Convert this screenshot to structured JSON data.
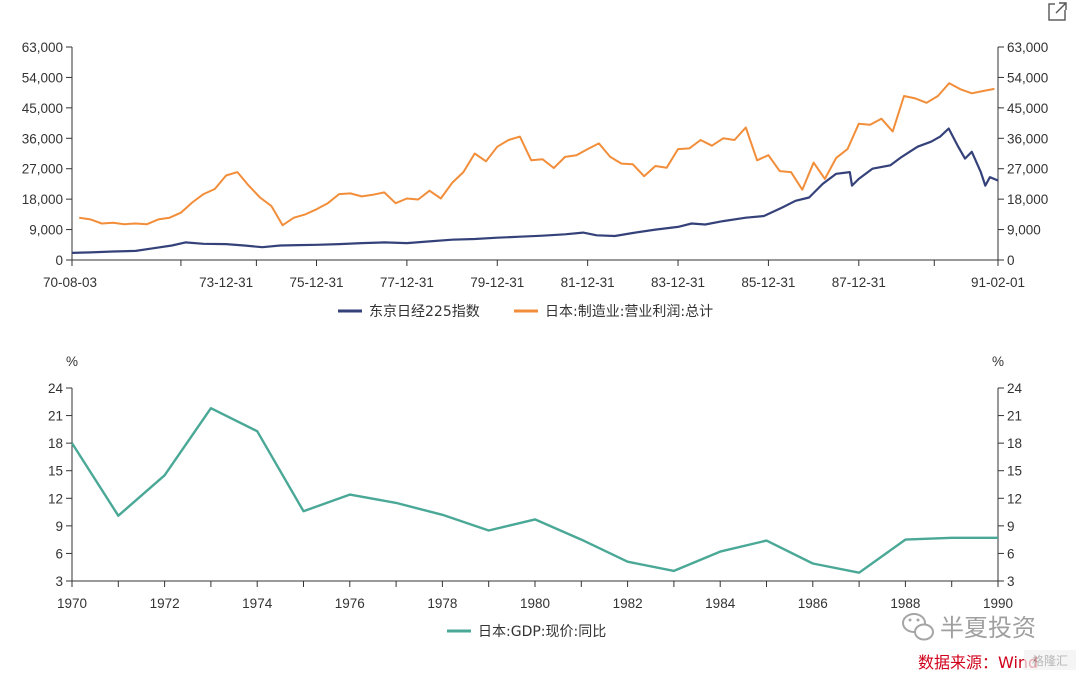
{
  "watermark": "半夏投资",
  "source_note": "数据来源：Wind",
  "corner_logo": "格隆汇",
  "chart_data": [
    {
      "type": "line",
      "x_start": "70-08-03",
      "x_end": "91-02-01",
      "x_tick_labels": [
        "70-08-03",
        "73-12-31",
        "75-12-31",
        "77-12-31",
        "79-12-31",
        "81-12-31",
        "83-12-31",
        "85-12-31",
        "87-12-31",
        "91-02-01"
      ],
      "y_left_ticks": [
        "0",
        "9,000",
        "18,000",
        "27,000",
        "36,000",
        "45,000",
        "54,000",
        "63,000"
      ],
      "y_right_ticks": [
        "0",
        "9,000",
        "18,000",
        "27,000",
        "36,000",
        "45,000",
        "54,000",
        "63,000"
      ],
      "ylim": [
        0,
        63000
      ],
      "grid": false,
      "legend_position": "bottom",
      "series": [
        {
          "name": "东京日经225指数",
          "color": "#35427a",
          "points": [
            [
              1970.59,
              2100
            ],
            [
              1971.0,
              2250
            ],
            [
              1971.5,
              2500
            ],
            [
              1972.0,
              2700
            ],
            [
              1972.4,
              3500
            ],
            [
              1972.8,
              4300
            ],
            [
              1973.1,
              5200
            ],
            [
              1973.5,
              4800
            ],
            [
              1974.0,
              4700
            ],
            [
              1974.4,
              4300
            ],
            [
              1974.8,
              3800
            ],
            [
              1975.2,
              4300
            ],
            [
              1975.6,
              4400
            ],
            [
              1976.0,
              4500
            ],
            [
              1976.5,
              4700
            ],
            [
              1977.0,
              5000
            ],
            [
              1977.5,
              5200
            ],
            [
              1978.0,
              5000
            ],
            [
              1978.5,
              5500
            ],
            [
              1979.0,
              6000
            ],
            [
              1979.5,
              6200
            ],
            [
              1980.0,
              6600
            ],
            [
              1980.5,
              6900
            ],
            [
              1981.0,
              7200
            ],
            [
              1981.5,
              7600
            ],
            [
              1981.9,
              8100
            ],
            [
              1982.2,
              7300
            ],
            [
              1982.6,
              7100
            ],
            [
              1983.0,
              8000
            ],
            [
              1983.5,
              9000
            ],
            [
              1984.0,
              9800
            ],
            [
              1984.3,
              10800
            ],
            [
              1984.6,
              10500
            ],
            [
              1985.0,
              11500
            ],
            [
              1985.5,
              12500
            ],
            [
              1985.9,
              13000
            ],
            [
              1986.3,
              15500
            ],
            [
              1986.6,
              17500
            ],
            [
              1986.9,
              18500
            ],
            [
              1987.2,
              22500
            ],
            [
              1987.5,
              25500
            ],
            [
              1987.8,
              26000
            ],
            [
              1987.85,
              22000
            ],
            [
              1988.0,
              24000
            ],
            [
              1988.3,
              27000
            ],
            [
              1988.7,
              28000
            ],
            [
              1988.95,
              30500
            ],
            [
              1989.3,
              33500
            ],
            [
              1989.6,
              35000
            ],
            [
              1989.8,
              36500
            ],
            [
              1989.99,
              38900
            ],
            [
              1990.2,
              33500
            ],
            [
              1990.35,
              30000
            ],
            [
              1990.5,
              32000
            ],
            [
              1990.7,
              26000
            ],
            [
              1990.8,
              22000
            ],
            [
              1990.9,
              24500
            ],
            [
              1991.08,
              23500
            ]
          ]
        },
        {
          "name": "日本:制造业:营业利润:总计",
          "color": "#f28e3a",
          "points": [
            [
              1970.75,
              12500
            ],
            [
              1971.0,
              12000
            ],
            [
              1971.25,
              10800
            ],
            [
              1971.5,
              11000
            ],
            [
              1971.75,
              10600
            ],
            [
              1972.0,
              10800
            ],
            [
              1972.25,
              10600
            ],
            [
              1972.5,
              12000
            ],
            [
              1972.75,
              12500
            ],
            [
              1973.0,
              14000
            ],
            [
              1973.25,
              17000
            ],
            [
              1973.5,
              19500
            ],
            [
              1973.75,
              21000
            ],
            [
              1974.0,
              25000
            ],
            [
              1974.25,
              26000
            ],
            [
              1974.5,
              22000
            ],
            [
              1974.75,
              18500
            ],
            [
              1975.0,
              16000
            ],
            [
              1975.25,
              10300
            ],
            [
              1975.5,
              12500
            ],
            [
              1975.75,
              13500
            ],
            [
              1976.0,
              15000
            ],
            [
              1976.25,
              16800
            ],
            [
              1976.5,
              19500
            ],
            [
              1976.75,
              19700
            ],
            [
              1977.0,
              18800
            ],
            [
              1977.25,
              19300
            ],
            [
              1977.5,
              20000
            ],
            [
              1977.75,
              16800
            ],
            [
              1978.0,
              18200
            ],
            [
              1978.25,
              17900
            ],
            [
              1978.5,
              20500
            ],
            [
              1978.75,
              18200
            ],
            [
              1979.0,
              22800
            ],
            [
              1979.25,
              26000
            ],
            [
              1979.5,
              31500
            ],
            [
              1979.75,
              29200
            ],
            [
              1980.0,
              33500
            ],
            [
              1980.25,
              35500
            ],
            [
              1980.5,
              36500
            ],
            [
              1980.75,
              29500
            ],
            [
              1981.0,
              29800
            ],
            [
              1981.25,
              27200
            ],
            [
              1981.5,
              30500
            ],
            [
              1981.75,
              31000
            ],
            [
              1982.0,
              32800
            ],
            [
              1982.25,
              34500
            ],
            [
              1982.5,
              30500
            ],
            [
              1982.75,
              28500
            ],
            [
              1983.0,
              28300
            ],
            [
              1983.25,
              24800
            ],
            [
              1983.5,
              27800
            ],
            [
              1983.75,
              27300
            ],
            [
              1984.0,
              32800
            ],
            [
              1984.25,
              33000
            ],
            [
              1984.5,
              35500
            ],
            [
              1984.75,
              33800
            ],
            [
              1985.0,
              36000
            ],
            [
              1985.25,
              35500
            ],
            [
              1985.5,
              39200
            ],
            [
              1985.75,
              29500
            ],
            [
              1986.0,
              31000
            ],
            [
              1986.25,
              26300
            ],
            [
              1986.5,
              26000
            ],
            [
              1986.75,
              20800
            ],
            [
              1987.0,
              28800
            ],
            [
              1987.25,
              24000
            ],
            [
              1987.5,
              30200
            ],
            [
              1987.75,
              32800
            ],
            [
              1988.0,
              40300
            ],
            [
              1988.25,
              40000
            ],
            [
              1988.5,
              41800
            ],
            [
              1988.75,
              38000
            ],
            [
              1989.0,
              48500
            ],
            [
              1989.25,
              47800
            ],
            [
              1989.5,
              46500
            ],
            [
              1989.75,
              48500
            ],
            [
              1990.0,
              52300
            ],
            [
              1990.25,
              50500
            ],
            [
              1990.5,
              49300
            ],
            [
              1990.75,
              50000
            ],
            [
              1991.0,
              50600
            ]
          ]
        }
      ]
    },
    {
      "type": "line",
      "y_unit_left": "%",
      "y_unit_right": "%",
      "categories": [
        "1970",
        "1971",
        "1972",
        "1973",
        "1974",
        "1975",
        "1976",
        "1977",
        "1978",
        "1979",
        "1980",
        "1981",
        "1982",
        "1983",
        "1984",
        "1985",
        "1986",
        "1987",
        "1988",
        "1989",
        "1990"
      ],
      "x_tick_labels": [
        "1970",
        "1972",
        "1974",
        "1976",
        "1978",
        "1980",
        "1982",
        "1984",
        "1986",
        "1988",
        "1990"
      ],
      "y_left_ticks": [
        "3",
        "6",
        "9",
        "12",
        "15",
        "18",
        "21",
        "24"
      ],
      "y_right_ticks": [
        "3",
        "6",
        "9",
        "12",
        "15",
        "18",
        "21",
        "24"
      ],
      "ylim": [
        3,
        24
      ],
      "grid": false,
      "legend_position": "bottom",
      "series": [
        {
          "name": "日本:GDP:现价:同比",
          "color": "#4aa897",
          "values": [
            18.0,
            10.1,
            14.5,
            21.8,
            19.3,
            10.6,
            12.4,
            11.5,
            10.2,
            8.5,
            9.7,
            7.5,
            5.1,
            4.1,
            6.2,
            7.4,
            4.9,
            3.9,
            7.5,
            7.7,
            7.7
          ]
        }
      ]
    }
  ]
}
